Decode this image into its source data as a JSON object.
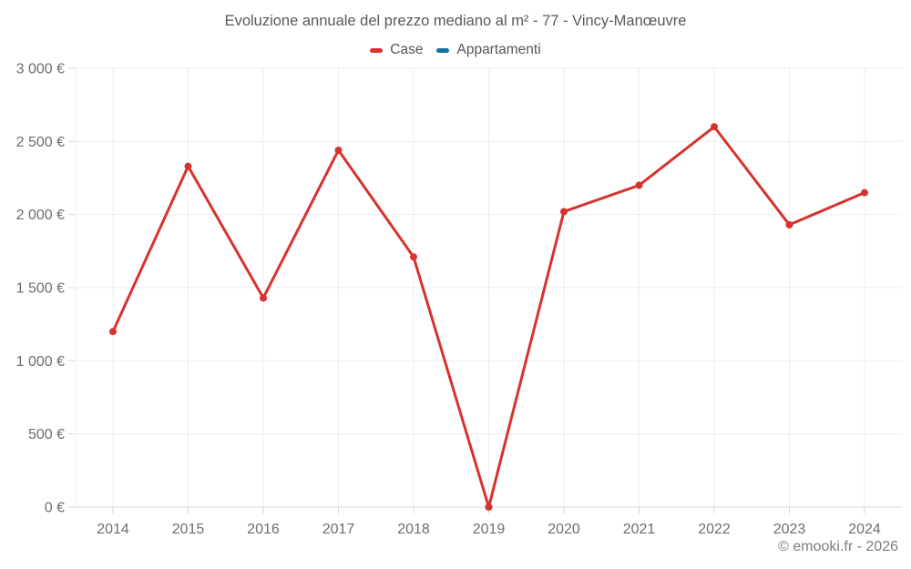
{
  "header": {
    "title": "Evoluzione annuale del prezzo mediano al m² - 77 - Vincy-Manœuvre"
  },
  "footer": {
    "credit": "© emooki.fr - 2026"
  },
  "colors": {
    "case_series": "#d7322e",
    "appartamenti_series": "#1273a2",
    "gridline": "#ededed",
    "axis_line": "#d7d7d7",
    "tick_text": "#6e6e6e",
    "title_text": "#595959",
    "footer_text": "#7d7d7d"
  },
  "chart_data": {
    "type": "line",
    "title": "Evoluzione annuale del prezzo mediano al m² - 77 - Vincy-Manœuvre",
    "x": [
      2014,
      2015,
      2016,
      2017,
      2018,
      2019,
      2020,
      2021,
      2022,
      2023,
      2024
    ],
    "series": [
      {
        "name": "Case",
        "color": "#d7322e",
        "values": [
          1200,
          2330,
          1430,
          2440,
          1710,
          0,
          2020,
          2200,
          2600,
          1930,
          2150
        ]
      },
      {
        "name": "Appartamenti",
        "color": "#1273a2",
        "values": []
      }
    ],
    "ylabel": "",
    "xlabel": "",
    "ylim": [
      0,
      3000
    ],
    "ytick_step": 500,
    "ytick_labels": [
      "0 €",
      "500 €",
      "1 000 €",
      "1 500 €",
      "2 000 €",
      "2 500 €",
      "3 000 €"
    ],
    "grid": true,
    "legend_position": "top",
    "currency": "€"
  }
}
